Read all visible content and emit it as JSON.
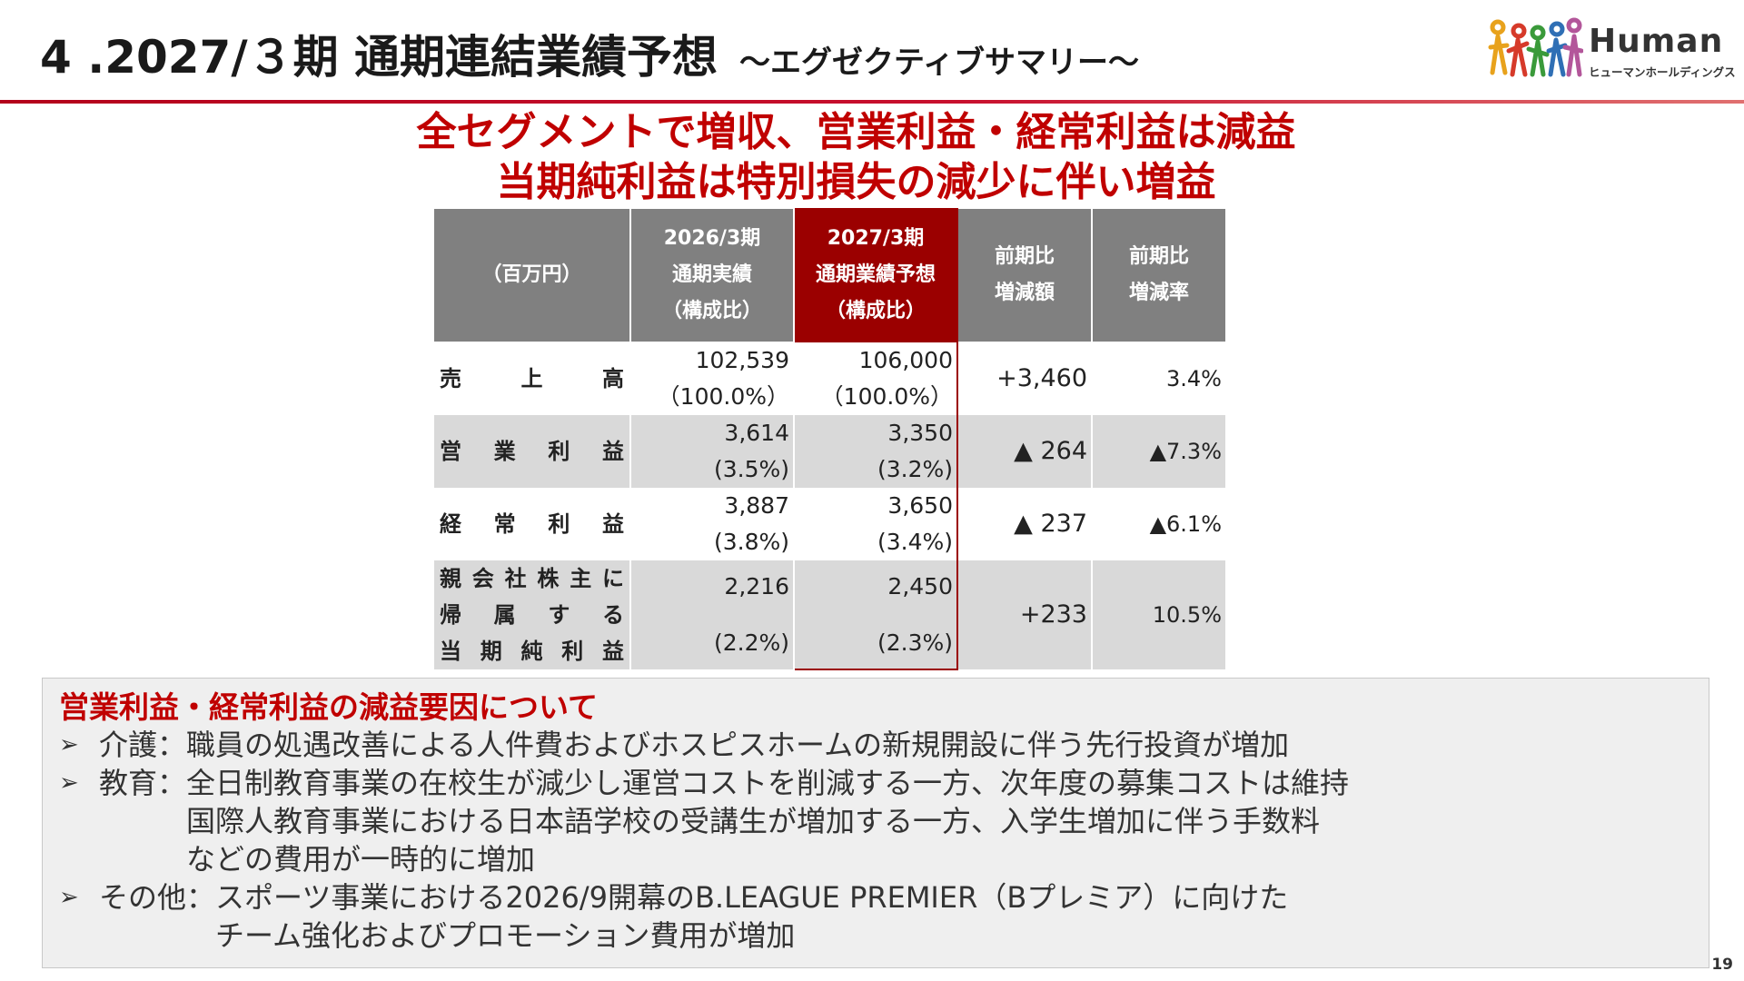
{
  "header": {
    "title": "4 .2027/３期 通期連結業績予想",
    "subtitle": "～エグゼクティブサマリー～"
  },
  "logo": {
    "name": "Human",
    "kana": "ヒューマンホールディングス"
  },
  "headline": {
    "line1": "全セグメントで増収、営業利益・経常利益は減益",
    "line2": "当期純利益は特別損失の減少に伴い増益"
  },
  "colors": {
    "accent_red": "#c00000",
    "forecast_header": "#9b0000",
    "header_gray": "#808080",
    "row_shade": "#d9d9d9"
  },
  "table": {
    "headers": [
      {
        "lines": [
          "（百万円）"
        ]
      },
      {
        "lines": [
          "2026/3期",
          "通期実績",
          "（構成比）"
        ]
      },
      {
        "lines": [
          "2027/3期",
          "通期業績予想",
          "（構成比）"
        ]
      },
      {
        "lines": [
          "前期比",
          "増減額"
        ]
      },
      {
        "lines": [
          "前期比",
          "増減率"
        ]
      }
    ],
    "rows": [
      {
        "label": [
          [
            "売",
            "上",
            "高"
          ]
        ],
        "actual": "102,539",
        "actual_ratio": "（100.0%）",
        "forecast": "106,000",
        "forecast_ratio": "（100.0%）",
        "change": "+3,460",
        "rate": "3.4%"
      },
      {
        "label": [
          [
            "営",
            "業",
            "利",
            "益"
          ]
        ],
        "actual": "3,614",
        "actual_ratio": "(3.5%)",
        "forecast": "3,350",
        "forecast_ratio": "(3.2%)",
        "change": "▲ 264",
        "rate": "▲7.3%"
      },
      {
        "label": [
          [
            "経",
            "常",
            "利",
            "益"
          ]
        ],
        "actual": "3,887",
        "actual_ratio": "(3.8%)",
        "forecast": "3,650",
        "forecast_ratio": "(3.4%)",
        "change": "▲ 237",
        "rate": "▲6.1%"
      },
      {
        "label": [
          [
            "親",
            "会",
            "社",
            "株",
            "主",
            "に"
          ],
          [
            "帰",
            "属",
            "す",
            "る"
          ],
          [
            "当",
            "期",
            "純",
            "利",
            "益"
          ]
        ],
        "actual": "2,216",
        "actual_ratio": "(2.2%)",
        "forecast": "2,450",
        "forecast_ratio": "(2.3%)",
        "change": "+233",
        "rate": "10.5%"
      }
    ]
  },
  "notes": {
    "title": "営業利益・経常利益の減益要因について",
    "arrow": "➢",
    "items": [
      {
        "category": "介護：",
        "lines": [
          "職員の処遇改善による人件費およびホスピスホームの新規開設に伴う先行投資が増加"
        ]
      },
      {
        "category": "教育：",
        "lines": [
          "全日制教育事業の在校生が減少し運営コストを削減する一方、次年度の募集コストは維持",
          "国際人教育事業における日本語学校の受講生が増加する一方、入学生増加に伴う手数料",
          "などの費用が一時的に増加"
        ]
      },
      {
        "category": "その他：",
        "lines": [
          "スポーツ事業における2026/9開幕のB.LEAGUE PREMIER（Bプレミア）に向けた",
          "チーム強化およびプロモーション費用が増加"
        ]
      }
    ]
  },
  "page_number": "19"
}
